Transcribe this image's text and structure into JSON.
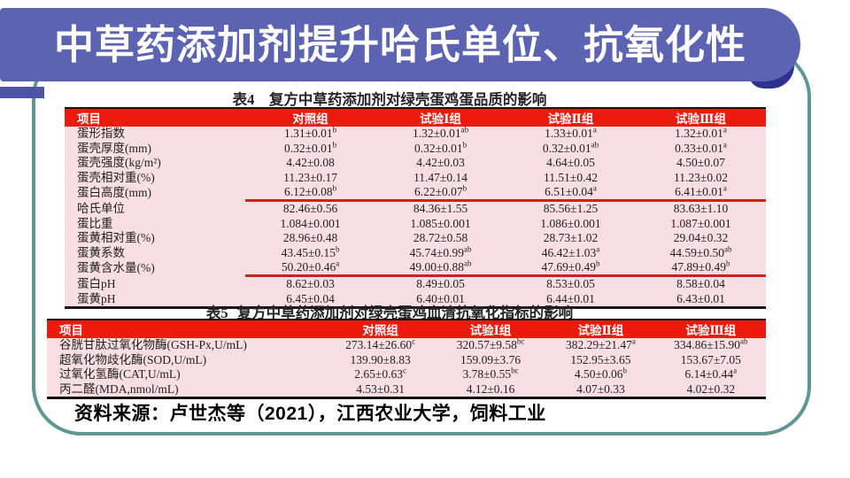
{
  "slide": {
    "title": "中草药添加剂提升哈氏单位、抗氧化性",
    "source_note": "资料来源：卢世杰等（2021），江西农业大学，饲料工业"
  },
  "colors": {
    "banner_purple": "#5c63b2",
    "notch_purple": "#4d54a6",
    "banner_shadow_navy": "#2d3190",
    "frame_teal": "#5f9793",
    "header_red": "#ed1b0e",
    "row_pink": "#f9dee4",
    "underline_red": "#c9241a"
  },
  "table4": {
    "caption": "表4　复方中草药添加剂对绿壳蛋鸡蛋品质的影响",
    "columns": [
      "项目",
      "对照组",
      "试验Ⅰ组",
      "试验Ⅱ组",
      "试验Ⅲ组"
    ],
    "rows": [
      {
        "label": "蛋形指数",
        "values": [
          [
            "1.31±0.01",
            "b"
          ],
          [
            "1.32±0.01",
            "ab"
          ],
          [
            "1.33±0.01",
            "a"
          ],
          [
            "1.32±0.01",
            "a"
          ]
        ]
      },
      {
        "label": "蛋壳厚度(mm)",
        "values": [
          [
            "0.32±0.01",
            "b"
          ],
          [
            "0.32±0.01",
            "b"
          ],
          [
            "0.32±0.01",
            "ab"
          ],
          [
            "0.33±0.01",
            "a"
          ]
        ]
      },
      {
        "label": "蛋壳强度(kg/m²)",
        "values": [
          [
            "4.42±0.08",
            ""
          ],
          [
            "4.42±0.03",
            ""
          ],
          [
            "4.64±0.05",
            ""
          ],
          [
            "4.50±0.07",
            ""
          ]
        ]
      },
      {
        "label": "蛋壳相对重(%)",
        "values": [
          [
            "11.23±0.17",
            ""
          ],
          [
            "11.47±0.14",
            ""
          ],
          [
            "11.51±0.42",
            ""
          ],
          [
            "11.23±0.02",
            ""
          ]
        ]
      },
      {
        "label": "蛋白高度(mm)",
        "underline": true,
        "values": [
          [
            "6.12±0.08",
            "b"
          ],
          [
            "6.22±0.07",
            "b"
          ],
          [
            "6.51±0.04",
            "a"
          ],
          [
            "6.41±0.01",
            "a"
          ]
        ]
      },
      {
        "label": "哈氏单位",
        "values": [
          [
            "82.46±0.56",
            ""
          ],
          [
            "84.36±1.55",
            ""
          ],
          [
            "85.56±1.25",
            ""
          ],
          [
            "83.63±1.10",
            ""
          ]
        ]
      },
      {
        "label": "蛋比重",
        "values": [
          [
            "1.084±0.001",
            ""
          ],
          [
            "1.085±0.001",
            ""
          ],
          [
            "1.086±0.001",
            ""
          ],
          [
            "1.087±0.001",
            ""
          ]
        ]
      },
      {
        "label": "蛋黄相对重(%)",
        "values": [
          [
            "28.96±0.48",
            ""
          ],
          [
            "28.72±0.58",
            ""
          ],
          [
            "28.73±1.02",
            ""
          ],
          [
            "29.04±0.32",
            ""
          ]
        ]
      },
      {
        "label": "蛋黄系数",
        "values": [
          [
            "43.45±0.15",
            "b"
          ],
          [
            "45.74±0.99",
            "ab"
          ],
          [
            "46.42±1.03",
            "a"
          ],
          [
            "44.59±0.50",
            "ab"
          ]
        ]
      },
      {
        "label": "蛋黄含水量(%)",
        "underline": true,
        "values": [
          [
            "50.20±0.46",
            "a"
          ],
          [
            "49.00±0.88",
            "ab"
          ],
          [
            "47.69±0.49",
            "b"
          ],
          [
            "47.89±0.49",
            "b"
          ]
        ]
      },
      {
        "label": "蛋白pH",
        "values": [
          [
            "8.62±0.03",
            ""
          ],
          [
            "8.49±0.05",
            ""
          ],
          [
            "8.53±0.05",
            ""
          ],
          [
            "8.58±0.04",
            ""
          ]
        ]
      },
      {
        "label": "蛋黄pH",
        "values": [
          [
            "6.45±0.04",
            ""
          ],
          [
            "6.40±0.01",
            ""
          ],
          [
            "6.44±0.01",
            ""
          ],
          [
            "6.43±0.01",
            ""
          ]
        ]
      }
    ]
  },
  "table5": {
    "caption_prefix": "表5",
    "caption": "复方中草药添加剂对绿壳蛋鸡血清抗氧化指标的影响",
    "columns": [
      "项目",
      "对照组",
      "试验Ⅰ组",
      "试验Ⅱ组",
      "试验Ⅲ组"
    ],
    "rows": [
      {
        "label": "谷胱甘肽过氧化物酶(GSH-Px,U/mL)",
        "values": [
          [
            "273.14±26.60",
            "c"
          ],
          [
            "320.57±9.58",
            "bc"
          ],
          [
            "382.29±21.47",
            "a"
          ],
          [
            "334.86±15.90",
            "ab"
          ]
        ]
      },
      {
        "label": "超氧化物歧化酶(SOD,U/mL)",
        "values": [
          [
            "139.90±8.83",
            ""
          ],
          [
            "159.09±3.76",
            ""
          ],
          [
            "152.95±3.65",
            ""
          ],
          [
            "153.67±7.05",
            ""
          ]
        ]
      },
      {
        "label": "过氧化氢酶(CAT,U/mL)",
        "values": [
          [
            "2.65±0.63",
            "c"
          ],
          [
            "3.78±0.55",
            "bc"
          ],
          [
            "4.50±0.06",
            "b"
          ],
          [
            "6.14±0.44",
            "a"
          ]
        ]
      },
      {
        "label": "丙二醛(MDA,nmol/mL)",
        "values": [
          [
            "4.53±0.31",
            ""
          ],
          [
            "4.12±0.16",
            ""
          ],
          [
            "4.07±0.33",
            ""
          ],
          [
            "4.02±0.32",
            ""
          ]
        ]
      }
    ]
  }
}
